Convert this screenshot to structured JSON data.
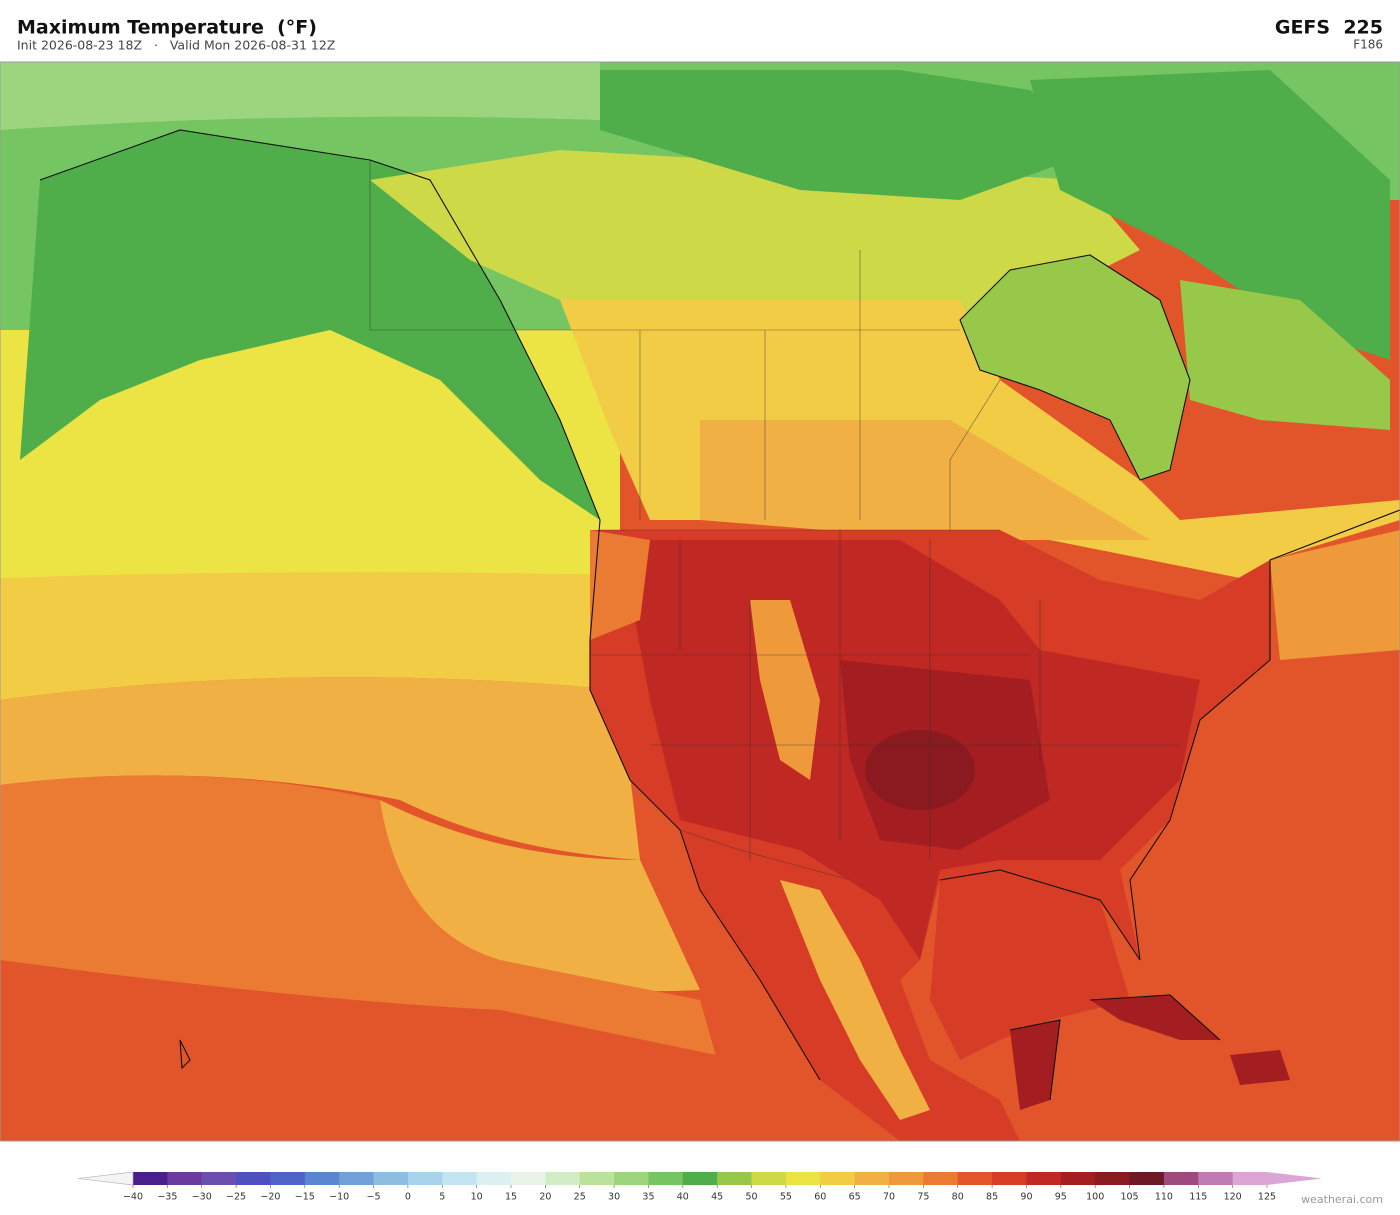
{
  "header": {
    "title": "Maximum Temperature  (°F)",
    "subtitle": "Init 2026-08-23 18Z   ·   Valid Mon 2026-08-31 12Z",
    "model": "GEFS  225",
    "forecast_hour": "F186"
  },
  "colorbar": {
    "lim": [
      -40,
      125
    ],
    "ticks": [
      {
        "value": -40,
        "label": "−40"
      },
      {
        "value": -35,
        "label": "−35"
      },
      {
        "value": -30,
        "label": "−30"
      },
      {
        "value": -25,
        "label": "−25"
      },
      {
        "value": -20,
        "label": "−20"
      },
      {
        "value": -15,
        "label": "−15"
      },
      {
        "value": -10,
        "label": "−10"
      },
      {
        "value": -5,
        "label": "−5"
      },
      0,
      5,
      10,
      15,
      20,
      25,
      30,
      35,
      40,
      45,
      50,
      55,
      60,
      65,
      70,
      75,
      80,
      85,
      90,
      95,
      100,
      105,
      110,
      115,
      120,
      125
    ],
    "colors": [
      "#4a1e8c",
      "#6a3a9e",
      "#6b4fb0",
      "#4e4fc0",
      "#4f63c9",
      "#5a85d0",
      "#72a0d8",
      "#8ebde2",
      "#a9d3ec",
      "#c4e4f2",
      "#dcf0f4",
      "#e8f5e6",
      "#d2edc6",
      "#bce39e",
      "#9dd57e",
      "#76c563",
      "#4fae4a",
      "#98c84a",
      "#cdd947",
      "#ece444",
      "#f2cc45",
      "#f1b043",
      "#ee9a3b",
      "#eb7a32",
      "#e2552a",
      "#d63c26",
      "#c02823",
      "#a41d21",
      "#8a1a1f",
      "#6e1a24",
      "#9e4a7c",
      "#c07ab4",
      "#dba6d6"
    ],
    "under_color": "#f4f4f4",
    "over_color": "#dba6d6"
  },
  "footer": {
    "watermark": "weatherai.com"
  }
}
